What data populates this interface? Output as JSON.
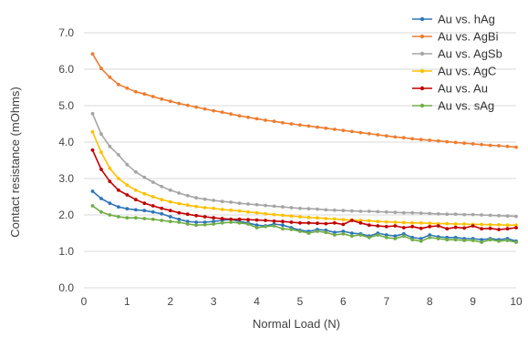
{
  "chart_data": {
    "type": "line",
    "title": "",
    "xlabel": "Normal Load (N)",
    "ylabel": "Contact resistance (mOhms)",
    "xlim": [
      0,
      10
    ],
    "ylim": [
      0.0,
      7.0
    ],
    "xticks": [
      "0",
      "1",
      "2",
      "3",
      "4",
      "5",
      "6",
      "7",
      "8",
      "9",
      "10"
    ],
    "yticks": [
      "0.0",
      "1.0",
      "2.0",
      "3.0",
      "4.0",
      "5.0",
      "6.0",
      "7.0"
    ],
    "grid": "horizontal",
    "legend_position": "top-right",
    "x": [
      0.2,
      0.4,
      0.6,
      0.8,
      1.0,
      1.2,
      1.4,
      1.6,
      1.8,
      2.0,
      2.2,
      2.4,
      2.6,
      2.8,
      3.0,
      3.2,
      3.4,
      3.6,
      3.8,
      4.0,
      4.2,
      4.4,
      4.6,
      4.8,
      5.0,
      5.2,
      5.4,
      5.6,
      5.8,
      6.0,
      6.2,
      6.4,
      6.6,
      6.8,
      7.0,
      7.2,
      7.4,
      7.6,
      7.8,
      8.0,
      8.2,
      8.4,
      8.6,
      8.8,
      9.0,
      9.2,
      9.4,
      9.6,
      9.8,
      10.0
    ],
    "series": [
      {
        "name": "Au vs. hAg",
        "color": "#2e75b6",
        "values": [
          2.65,
          2.45,
          2.32,
          2.22,
          2.17,
          2.14,
          2.12,
          2.08,
          2.03,
          1.95,
          1.88,
          1.82,
          1.8,
          1.8,
          1.82,
          1.85,
          1.88,
          1.82,
          1.78,
          1.72,
          1.7,
          1.75,
          1.72,
          1.65,
          1.58,
          1.55,
          1.6,
          1.58,
          1.52,
          1.55,
          1.5,
          1.48,
          1.42,
          1.5,
          1.45,
          1.42,
          1.48,
          1.38,
          1.35,
          1.45,
          1.4,
          1.38,
          1.38,
          1.35,
          1.35,
          1.32,
          1.35,
          1.32,
          1.35,
          1.28
        ]
      },
      {
        "name": "Au vs. AgBi",
        "color": "#ed7d31",
        "values": [
          6.42,
          6.02,
          5.78,
          5.58,
          5.48,
          5.38,
          5.32,
          5.25,
          5.18,
          5.12,
          5.06,
          5.01,
          4.96,
          4.91,
          4.86,
          4.82,
          4.77,
          4.72,
          4.68,
          4.64,
          4.6,
          4.57,
          4.53,
          4.5,
          4.47,
          4.44,
          4.41,
          4.38,
          4.35,
          4.32,
          4.29,
          4.26,
          4.23,
          4.2,
          4.17,
          4.14,
          4.12,
          4.09,
          4.07,
          4.05,
          4.03,
          4.01,
          3.99,
          3.97,
          3.95,
          3.93,
          3.91,
          3.9,
          3.88,
          3.86
        ]
      },
      {
        "name": "Au vs. AgSb",
        "color": "#a5a5a5",
        "values": [
          4.78,
          4.22,
          3.88,
          3.65,
          3.38,
          3.18,
          3.03,
          2.9,
          2.78,
          2.68,
          2.6,
          2.53,
          2.47,
          2.43,
          2.4,
          2.37,
          2.35,
          2.32,
          2.3,
          2.28,
          2.26,
          2.24,
          2.22,
          2.2,
          2.18,
          2.17,
          2.16,
          2.14,
          2.13,
          2.12,
          2.11,
          2.1,
          2.1,
          2.09,
          2.08,
          2.07,
          2.06,
          2.06,
          2.05,
          2.04,
          2.03,
          2.02,
          2.02,
          2.01,
          2.01,
          2.0,
          1.99,
          1.98,
          1.97,
          1.96
        ]
      },
      {
        "name": "Au vs. AgC",
        "color": "#ffc000",
        "values": [
          4.28,
          3.72,
          3.28,
          3.0,
          2.82,
          2.68,
          2.58,
          2.5,
          2.42,
          2.36,
          2.31,
          2.27,
          2.23,
          2.2,
          2.18,
          2.15,
          2.13,
          2.11,
          2.08,
          2.06,
          2.03,
          2.01,
          1.99,
          1.97,
          1.95,
          1.93,
          1.92,
          1.9,
          1.89,
          1.87,
          1.86,
          1.85,
          1.84,
          1.82,
          1.81,
          1.8,
          1.79,
          1.78,
          1.78,
          1.77,
          1.76,
          1.76,
          1.75,
          1.75,
          1.74,
          1.74,
          1.73,
          1.73,
          1.72,
          1.72
        ]
      },
      {
        "name": "Au vs. Au",
        "color": "#c00000",
        "values": [
          3.78,
          3.25,
          2.92,
          2.68,
          2.55,
          2.42,
          2.32,
          2.25,
          2.18,
          2.12,
          2.06,
          2.02,
          1.98,
          1.95,
          1.92,
          1.9,
          1.88,
          1.88,
          1.87,
          1.86,
          1.85,
          1.83,
          1.82,
          1.8,
          1.78,
          1.78,
          1.77,
          1.76,
          1.78,
          1.74,
          1.85,
          1.78,
          1.72,
          1.7,
          1.68,
          1.7,
          1.65,
          1.68,
          1.63,
          1.68,
          1.7,
          1.62,
          1.66,
          1.64,
          1.7,
          1.62,
          1.63,
          1.6,
          1.62,
          1.65
        ]
      },
      {
        "name": "Au vs. sAg",
        "color": "#70ad47",
        "values": [
          2.25,
          2.08,
          2.0,
          1.95,
          1.92,
          1.92,
          1.9,
          1.88,
          1.85,
          1.82,
          1.8,
          1.75,
          1.72,
          1.73,
          1.75,
          1.78,
          1.8,
          1.78,
          1.75,
          1.65,
          1.68,
          1.7,
          1.62,
          1.6,
          1.55,
          1.5,
          1.55,
          1.52,
          1.45,
          1.48,
          1.42,
          1.45,
          1.38,
          1.45,
          1.38,
          1.35,
          1.42,
          1.32,
          1.28,
          1.38,
          1.35,
          1.32,
          1.32,
          1.3,
          1.3,
          1.25,
          1.32,
          1.28,
          1.3,
          1.25
        ]
      }
    ]
  }
}
